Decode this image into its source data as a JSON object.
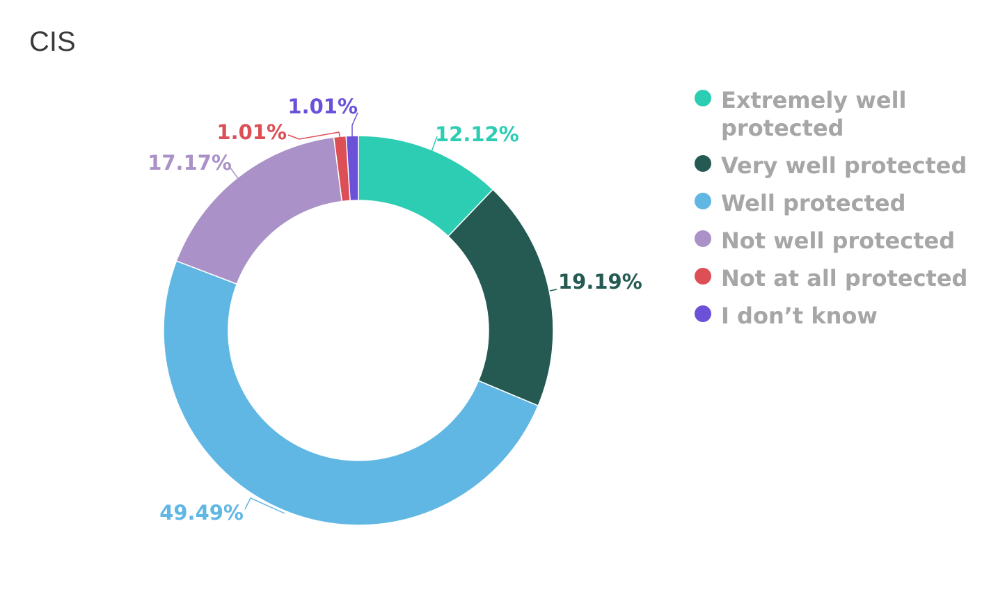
{
  "chart_data": {
    "type": "pie",
    "title": "CIS",
    "donut": true,
    "legend_position": "right",
    "slices": [
      {
        "label": "Extremely well protected",
        "value": 12.12,
        "display": "12.12%",
        "color": "#2ccdb3"
      },
      {
        "label": "Very well protected",
        "value": 19.19,
        "display": "19.19%",
        "color": "#245a52"
      },
      {
        "label": "Well protected",
        "value": 49.49,
        "display": "49.49%",
        "color": "#61b7e4"
      },
      {
        "label": "Not well protected",
        "value": 17.17,
        "display": "17.17%",
        "color": "#aa91c7"
      },
      {
        "label": "Not at all protected",
        "value": 1.01,
        "display": "1.01%",
        "color": "#dc4f55"
      },
      {
        "label": "I don’t know",
        "value": 1.01,
        "display": "1.01%",
        "color": "#6b50d8"
      }
    ]
  }
}
